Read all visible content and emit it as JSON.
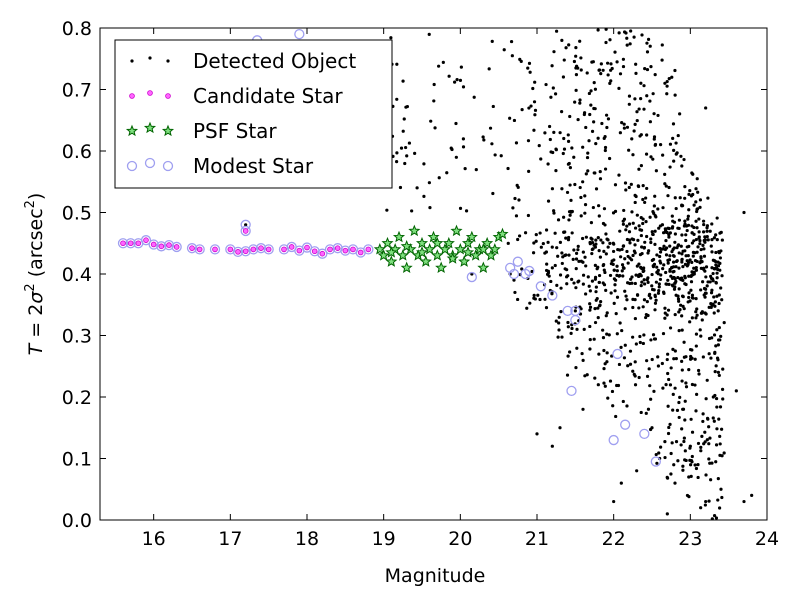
{
  "chart_data": {
    "type": "scatter",
    "xlabel": "Magnitude",
    "ylabel_parts": [
      "T",
      " = 2",
      "σ",
      "2",
      " (arcsec",
      "2",
      ")"
    ],
    "xlim": [
      15.3,
      24
    ],
    "ylim": [
      0,
      0.8
    ],
    "xticks": [
      16,
      17,
      18,
      19,
      20,
      21,
      22,
      23,
      24
    ],
    "yticks": [
      0.0,
      0.1,
      0.2,
      0.3,
      0.4,
      0.5,
      0.6,
      0.7,
      0.8
    ],
    "ytick_labels": [
      "0.0",
      "0.1",
      "0.2",
      "0.3",
      "0.4",
      "0.5",
      "0.6",
      "0.7",
      "0.8"
    ],
    "legend_position": "top-left",
    "legend": [
      {
        "label": "Detected Object",
        "marker": "dot",
        "color": "#000000"
      },
      {
        "label": "Candidate Star",
        "marker": "circle-filled",
        "color": "#ff00ff"
      },
      {
        "label": "PSF Star",
        "marker": "star",
        "color": "#008000"
      },
      {
        "label": "Modest Star",
        "marker": "circle-open",
        "color": "#9f9ff0"
      }
    ],
    "series": [
      {
        "name": "Modest Star",
        "points": [
          [
            15.6,
            0.45
          ],
          [
            15.7,
            0.45
          ],
          [
            15.8,
            0.45
          ],
          [
            15.9,
            0.455
          ],
          [
            16.0,
            0.448
          ],
          [
            16.1,
            0.445
          ],
          [
            16.2,
            0.447
          ],
          [
            16.3,
            0.444
          ],
          [
            16.5,
            0.442
          ],
          [
            16.6,
            0.44
          ],
          [
            16.8,
            0.44
          ],
          [
            17.0,
            0.44
          ],
          [
            17.1,
            0.436
          ],
          [
            17.2,
            0.437
          ],
          [
            17.3,
            0.44
          ],
          [
            17.4,
            0.442
          ],
          [
            17.5,
            0.44
          ],
          [
            17.7,
            0.44
          ],
          [
            17.8,
            0.444
          ],
          [
            17.9,
            0.438
          ],
          [
            18.0,
            0.443
          ],
          [
            18.1,
            0.437
          ],
          [
            18.2,
            0.433
          ],
          [
            18.3,
            0.44
          ],
          [
            18.4,
            0.442
          ],
          [
            18.5,
            0.438
          ],
          [
            18.6,
            0.44
          ],
          [
            18.7,
            0.435
          ],
          [
            18.8,
            0.44
          ],
          [
            17.2,
            0.47
          ],
          [
            17.2,
            0.48
          ],
          [
            17.35,
            0.78
          ],
          [
            17.9,
            0.79
          ],
          [
            20.15,
            0.395
          ],
          [
            20.65,
            0.41
          ],
          [
            20.7,
            0.4
          ],
          [
            20.75,
            0.42
          ],
          [
            20.85,
            0.4
          ],
          [
            20.9,
            0.405
          ],
          [
            21.05,
            0.38
          ],
          [
            21.2,
            0.365
          ],
          [
            21.4,
            0.34
          ],
          [
            21.5,
            0.34
          ],
          [
            21.5,
            0.325
          ],
          [
            21.45,
            0.21
          ],
          [
            22.05,
            0.27
          ],
          [
            22.0,
            0.13
          ],
          [
            22.15,
            0.155
          ],
          [
            22.4,
            0.14
          ],
          [
            22.55,
            0.095
          ]
        ]
      },
      {
        "name": "Candidate Star",
        "points": [
          [
            15.6,
            0.45
          ],
          [
            15.7,
            0.45
          ],
          [
            15.8,
            0.45
          ],
          [
            15.9,
            0.455
          ],
          [
            16.0,
            0.448
          ],
          [
            16.1,
            0.445
          ],
          [
            16.2,
            0.447
          ],
          [
            16.3,
            0.444
          ],
          [
            16.5,
            0.442
          ],
          [
            16.6,
            0.44
          ],
          [
            16.8,
            0.44
          ],
          [
            17.0,
            0.44
          ],
          [
            17.1,
            0.436
          ],
          [
            17.2,
            0.437
          ],
          [
            17.3,
            0.44
          ],
          [
            17.4,
            0.442
          ],
          [
            17.5,
            0.44
          ],
          [
            17.7,
            0.44
          ],
          [
            17.8,
            0.444
          ],
          [
            17.9,
            0.438
          ],
          [
            18.0,
            0.443
          ],
          [
            18.1,
            0.437
          ],
          [
            18.2,
            0.433
          ],
          [
            18.3,
            0.44
          ],
          [
            18.4,
            0.442
          ],
          [
            18.5,
            0.438
          ],
          [
            18.6,
            0.44
          ],
          [
            18.7,
            0.435
          ],
          [
            18.8,
            0.44
          ],
          [
            17.2,
            0.47
          ]
        ]
      },
      {
        "name": "PSF Star",
        "points": [
          [
            18.95,
            0.44
          ],
          [
            19.0,
            0.43
          ],
          [
            19.05,
            0.45
          ],
          [
            19.1,
            0.42
          ],
          [
            19.15,
            0.44
          ],
          [
            19.2,
            0.46
          ],
          [
            19.25,
            0.43
          ],
          [
            19.3,
            0.41
          ],
          [
            19.35,
            0.44
          ],
          [
            19.4,
            0.47
          ],
          [
            19.45,
            0.43
          ],
          [
            19.5,
            0.45
          ],
          [
            19.55,
            0.42
          ],
          [
            19.6,
            0.44
          ],
          [
            19.65,
            0.46
          ],
          [
            19.7,
            0.43
          ],
          [
            19.75,
            0.41
          ],
          [
            19.8,
            0.44
          ],
          [
            19.85,
            0.45
          ],
          [
            19.9,
            0.43
          ],
          [
            19.95,
            0.47
          ],
          [
            20.0,
            0.44
          ],
          [
            20.05,
            0.42
          ],
          [
            20.1,
            0.45
          ],
          [
            20.15,
            0.46
          ],
          [
            20.2,
            0.43
          ],
          [
            20.25,
            0.44
          ],
          [
            20.3,
            0.41
          ],
          [
            20.35,
            0.45
          ],
          [
            20.4,
            0.43
          ],
          [
            20.45,
            0.44
          ],
          [
            20.5,
            0.46
          ],
          [
            20.55,
            0.465
          ],
          [
            19.1,
            0.435
          ],
          [
            19.3,
            0.445
          ],
          [
            19.5,
            0.435
          ],
          [
            19.7,
            0.45
          ],
          [
            19.9,
            0.425
          ],
          [
            20.1,
            0.435
          ],
          [
            20.3,
            0.44
          ]
        ]
      },
      {
        "name": "Detected Object",
        "points": [
          [
            17.2,
            0.48
          ],
          [
            20.15,
            0.4
          ],
          [
            20.65,
            0.4
          ],
          [
            20.7,
            0.39
          ],
          [
            21.5,
            0.34
          ],
          [
            22.6,
            0.1
          ],
          [
            21.2,
            0.41
          ],
          [
            21.3,
            0.15
          ],
          [
            21.0,
            0.14
          ],
          [
            21.2,
            0.12
          ],
          [
            21.6,
            0.18
          ],
          [
            21.8,
            0.22
          ],
          [
            22.1,
            0.06
          ],
          [
            22.0,
            0.03
          ],
          [
            22.3,
            0.08
          ],
          [
            22.7,
            0.01
          ],
          [
            23.0,
            0.12
          ],
          [
            23.2,
            0.03
          ],
          [
            23.4,
            0.05
          ],
          [
            23.6,
            0.21
          ],
          [
            23.7,
            0.03
          ],
          [
            23.8,
            0.04
          ],
          [
            23.7,
            0.5
          ],
          [
            22.9,
            0.18
          ],
          [
            23.1,
            0.09
          ],
          [
            22.8,
            0.06
          ],
          [
            22.5,
            0.15
          ],
          [
            23.3,
            0.2
          ],
          [
            23.2,
            0.67
          ],
          [
            22.7,
            0.8
          ]
        ]
      }
    ],
    "detected_cloud": {
      "seed": 20240517,
      "count": 1180,
      "note_free": true
    }
  }
}
